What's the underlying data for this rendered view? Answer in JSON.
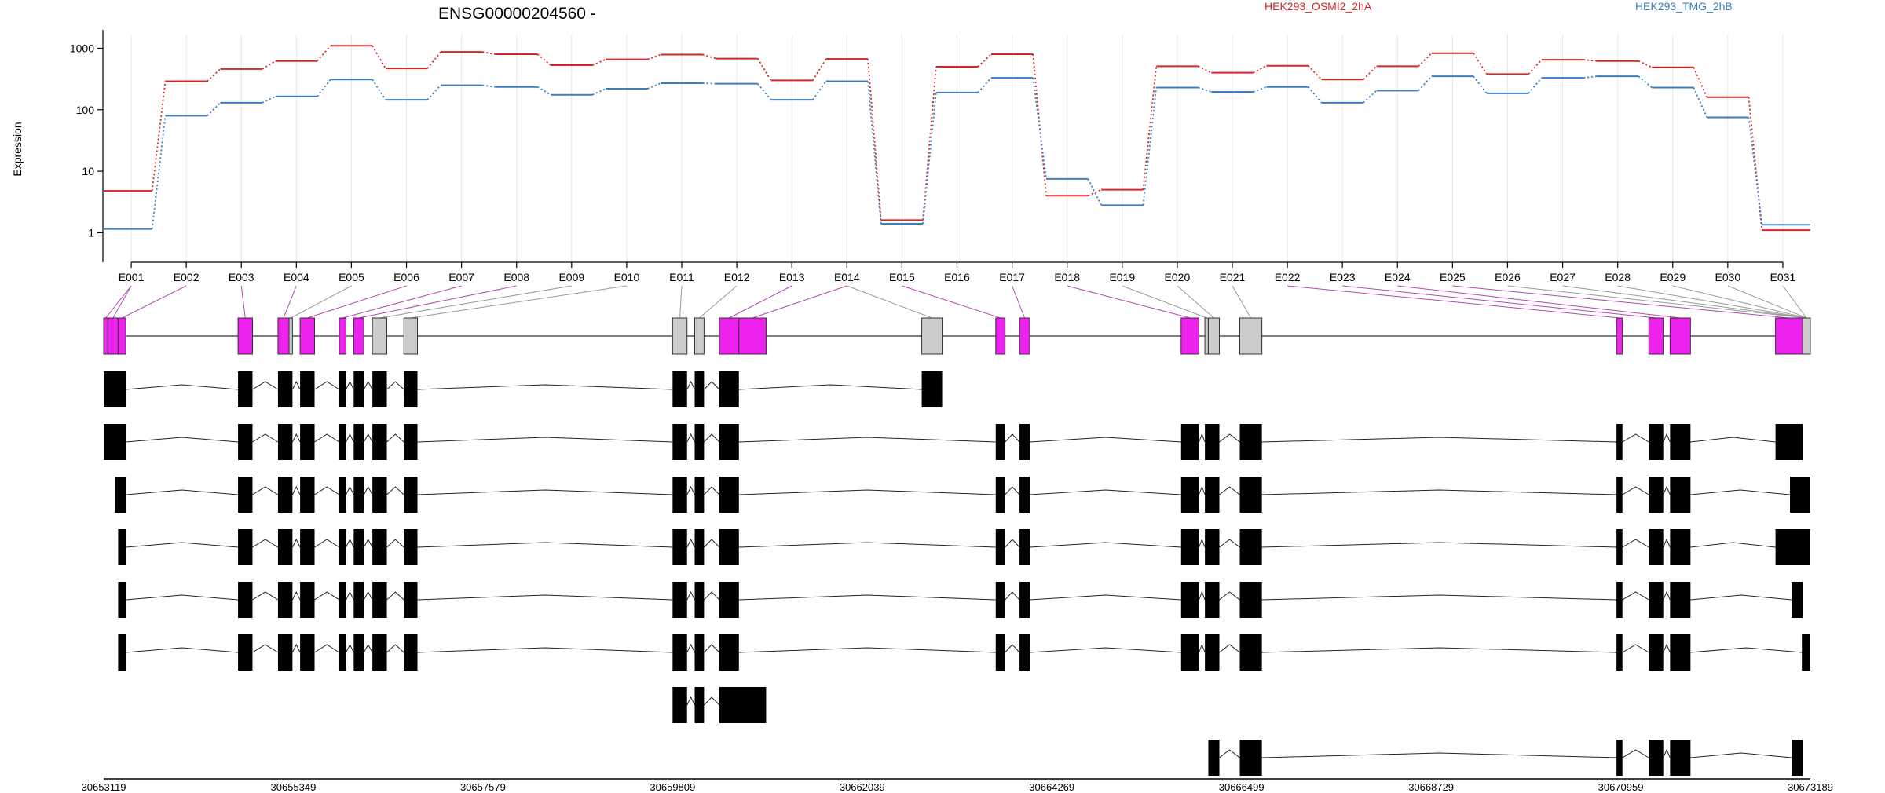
{
  "title": "ENSG00000204560 -",
  "ylabel": "Expression",
  "colors": {
    "highlight": "#ee22ee",
    "neutral": "#cccccc",
    "transcript": "#000000"
  },
  "chart_data": {
    "type": "line",
    "yscale": "log",
    "ylim": [
      0.5,
      1400
    ],
    "yticks": [
      1,
      10,
      100,
      1000
    ],
    "ytick_labels": [
      "1",
      "10",
      "100",
      "1000"
    ],
    "categories": [
      "E001",
      "E002",
      "E003",
      "E004",
      "E005",
      "E006",
      "E007",
      "E008",
      "E009",
      "E010",
      "E011",
      "E012",
      "E013",
      "E014",
      "E015",
      "E016",
      "E017",
      "E018",
      "E019",
      "E020",
      "E021",
      "E022",
      "E023",
      "E024",
      "E025",
      "E026",
      "E027",
      "E028",
      "E029",
      "E030",
      "E031"
    ],
    "series": [
      {
        "name": "HEK293_OSMI2_2hA",
        "color": "#d62728",
        "values": [
          4.8,
          290,
          460,
          620,
          1100,
          470,
          870,
          800,
          530,
          660,
          790,
          680,
          300,
          670,
          1.6,
          500,
          800,
          4.0,
          5.0,
          510,
          400,
          520,
          310,
          510,
          830,
          380,
          650,
          620,
          490,
          160,
          1.1
        ]
      },
      {
        "name": "HEK293_TMG_2hB",
        "color": "#3a7fc1",
        "values": [
          1.15,
          80,
          130,
          165,
          310,
          145,
          250,
          235,
          175,
          220,
          270,
          265,
          145,
          290,
          1.4,
          190,
          330,
          7.5,
          2.8,
          230,
          195,
          235,
          130,
          205,
          350,
          185,
          330,
          350,
          230,
          75,
          1.35
        ]
      }
    ],
    "gene_track": {
      "xlim": [
        30653119,
        30673189
      ],
      "ticks": [
        30653119,
        30655349,
        30657579,
        30659809,
        30662039,
        30664269,
        30666499,
        30668729,
        30670959,
        30673189
      ],
      "exon_bins": [
        [
          30653119,
          30653169
        ],
        [
          30653169,
          30653289
        ],
        [
          30653289,
          30653379
        ],
        [
          30654699,
          30654869
        ],
        [
          30655169,
          30655299
        ],
        [
          30655299,
          30655339
        ],
        [
          30655429,
          30655599
        ],
        [
          30655889,
          30655969
        ],
        [
          30656059,
          30656179
        ],
        [
          30656279,
          30656449
        ],
        [
          30656649,
          30656809
        ],
        [
          30659809,
          30659979
        ],
        [
          30660069,
          30660179
        ],
        [
          30660359,
          30660589
        ],
        [
          30660589,
          30660909
        ],
        [
          30662739,
          30662979
        ],
        [
          30663609,
          30663719
        ],
        [
          30663889,
          30664009
        ],
        [
          30665789,
          30665999
        ],
        [
          30666069,
          30666109
        ],
        [
          30666109,
          30666239
        ],
        [
          30666479,
          30666739
        ],
        [
          30670909,
          30670979
        ],
        [
          30671289,
          30671459
        ],
        [
          30671539,
          30671779
        ],
        [
          30672779,
          30673099
        ],
        [
          30673099,
          30673189
        ]
      ],
      "exon_status": [
        "H",
        "H",
        "H",
        "H",
        "H",
        "G",
        "H",
        "H",
        "H",
        "G",
        "G",
        "G",
        "G",
        "H",
        "H",
        "G",
        "H",
        "H",
        "H",
        "G",
        "G",
        "G",
        "H",
        "H",
        "H",
        "H",
        "G"
      ],
      "label_links": [
        0,
        0,
        1,
        2,
        3,
        4,
        5,
        6,
        7,
        8,
        9,
        10,
        11,
        12,
        13,
        13,
        14,
        16,
        17,
        18,
        19,
        20,
        21,
        22,
        23,
        24,
        25,
        26,
        27,
        28,
        29,
        30
      ],
      "transcripts": [
        [
          [
            30653119,
            30653379
          ],
          [
            30654699,
            30654869
          ],
          [
            30655169,
            30655339
          ],
          [
            30655429,
            30655599
          ],
          [
            30655889,
            30655969
          ],
          [
            30656059,
            30656179
          ],
          [
            30656279,
            30656449
          ],
          [
            30656649,
            30656809
          ],
          [
            30659809,
            30659979
          ],
          [
            30660069,
            30660179
          ],
          [
            30660359,
            30660589
          ],
          [
            30662739,
            30662979
          ]
        ],
        [
          [
            30653119,
            30653379
          ],
          [
            30654699,
            30654869
          ],
          [
            30655169,
            30655339
          ],
          [
            30655429,
            30655599
          ],
          [
            30655889,
            30655969
          ],
          [
            30656059,
            30656179
          ],
          [
            30656279,
            30656449
          ],
          [
            30656649,
            30656809
          ],
          [
            30659809,
            30659979
          ],
          [
            30660069,
            30660179
          ],
          [
            30660359,
            30660589
          ],
          [
            30663609,
            30663719
          ],
          [
            30663889,
            30664009
          ],
          [
            30665789,
            30665999
          ],
          [
            30666069,
            30666239
          ],
          [
            30666479,
            30666739
          ],
          [
            30670909,
            30670979
          ],
          [
            30671289,
            30671459
          ],
          [
            30671539,
            30671779
          ],
          [
            30672779,
            30673099
          ]
        ],
        [
          [
            30653249,
            30653379
          ],
          [
            30654699,
            30654869
          ],
          [
            30655169,
            30655339
          ],
          [
            30655429,
            30655599
          ],
          [
            30655889,
            30655969
          ],
          [
            30656059,
            30656179
          ],
          [
            30656279,
            30656449
          ],
          [
            30656649,
            30656809
          ],
          [
            30659809,
            30659979
          ],
          [
            30660069,
            30660179
          ],
          [
            30660359,
            30660589
          ],
          [
            30663609,
            30663719
          ],
          [
            30663889,
            30664009
          ],
          [
            30665789,
            30665999
          ],
          [
            30666069,
            30666239
          ],
          [
            30666479,
            30666739
          ],
          [
            30670909,
            30670979
          ],
          [
            30671289,
            30671459
          ],
          [
            30671539,
            30671779
          ],
          [
            30672949,
            30673189
          ]
        ],
        [
          [
            30653289,
            30653379
          ],
          [
            30654699,
            30654869
          ],
          [
            30655169,
            30655339
          ],
          [
            30655429,
            30655599
          ],
          [
            30655889,
            30655969
          ],
          [
            30656059,
            30656179
          ],
          [
            30656279,
            30656449
          ],
          [
            30656649,
            30656809
          ],
          [
            30659809,
            30659979
          ],
          [
            30660069,
            30660179
          ],
          [
            30660359,
            30660589
          ],
          [
            30663609,
            30663719
          ],
          [
            30663889,
            30664009
          ],
          [
            30665789,
            30665999
          ],
          [
            30666069,
            30666239
          ],
          [
            30666479,
            30666739
          ],
          [
            30670909,
            30670979
          ],
          [
            30671289,
            30671459
          ],
          [
            30671539,
            30671779
          ],
          [
            30672779,
            30673189
          ]
        ],
        [
          [
            30653289,
            30653379
          ],
          [
            30654699,
            30654869
          ],
          [
            30655169,
            30655339
          ],
          [
            30655429,
            30655599
          ],
          [
            30655889,
            30655969
          ],
          [
            30656059,
            30656179
          ],
          [
            30656279,
            30656449
          ],
          [
            30656649,
            30656809
          ],
          [
            30659809,
            30659979
          ],
          [
            30660069,
            30660179
          ],
          [
            30660359,
            30660589
          ],
          [
            30663609,
            30663719
          ],
          [
            30663889,
            30664009
          ],
          [
            30665789,
            30665999
          ],
          [
            30666069,
            30666239
          ],
          [
            30666479,
            30666739
          ],
          [
            30670909,
            30670979
          ],
          [
            30671289,
            30671459
          ],
          [
            30671539,
            30671779
          ],
          [
            30672969,
            30673099
          ]
        ],
        [
          [
            30653289,
            30653379
          ],
          [
            30654699,
            30654869
          ],
          [
            30655169,
            30655339
          ],
          [
            30655429,
            30655599
          ],
          [
            30655889,
            30655969
          ],
          [
            30656059,
            30656179
          ],
          [
            30656279,
            30656449
          ],
          [
            30656649,
            30656809
          ],
          [
            30659809,
            30659979
          ],
          [
            30660069,
            30660179
          ],
          [
            30660359,
            30660589
          ],
          [
            30663609,
            30663719
          ],
          [
            30663889,
            30664009
          ],
          [
            30665789,
            30665999
          ],
          [
            30666069,
            30666239
          ],
          [
            30666479,
            30666739
          ],
          [
            30670909,
            30670979
          ],
          [
            30671289,
            30671459
          ],
          [
            30671539,
            30671779
          ],
          [
            30673089,
            30673189
          ]
        ],
        [
          [
            30659809,
            30659979
          ],
          [
            30660069,
            30660179
          ],
          [
            30660359,
            30660909
          ]
        ],
        [
          [
            30666109,
            30666239
          ],
          [
            30666479,
            30666739
          ],
          [
            30670909,
            30670979
          ],
          [
            30671289,
            30671459
          ],
          [
            30671539,
            30671779
          ],
          [
            30672969,
            30673099
          ]
        ]
      ]
    }
  }
}
